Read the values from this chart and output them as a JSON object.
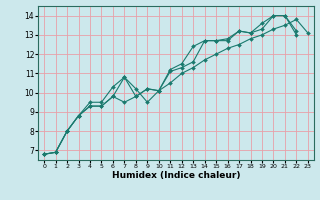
{
  "title": "",
  "xlabel": "Humidex (Indice chaleur)",
  "background_color": "#cce8ec",
  "grid_color": "#e8a0a8",
  "line_color": "#1a7a6e",
  "xlim": [
    -0.5,
    23.5
  ],
  "ylim": [
    6.5,
    14.5
  ],
  "xticks": [
    0,
    1,
    2,
    3,
    4,
    5,
    6,
    7,
    8,
    9,
    10,
    11,
    12,
    13,
    14,
    15,
    16,
    17,
    18,
    19,
    20,
    21,
    22,
    23
  ],
  "yticks": [
    7,
    8,
    9,
    10,
    11,
    12,
    13,
    14
  ],
  "line1_x": [
    0,
    1,
    2,
    3,
    4,
    5,
    6,
    7,
    8,
    9,
    10,
    11,
    12,
    13,
    14,
    15,
    16,
    17,
    18,
    19,
    20,
    21,
    22
  ],
  "line1_y": [
    6.8,
    6.9,
    8.0,
    8.8,
    9.5,
    9.5,
    10.3,
    10.8,
    9.8,
    10.2,
    10.1,
    11.2,
    11.5,
    12.4,
    12.7,
    12.7,
    12.8,
    13.2,
    13.1,
    13.6,
    14.0,
    14.0,
    13.0
  ],
  "line2_x": [
    0,
    1,
    2,
    3,
    4,
    5,
    6,
    7,
    8,
    9,
    10,
    11,
    12,
    13,
    14,
    15,
    16,
    17,
    18,
    19,
    20,
    21,
    22
  ],
  "line2_y": [
    6.8,
    6.9,
    8.0,
    8.8,
    9.3,
    9.3,
    9.8,
    10.8,
    10.2,
    9.5,
    10.1,
    11.1,
    11.3,
    11.6,
    12.7,
    12.7,
    12.7,
    13.2,
    13.1,
    13.3,
    14.0,
    14.0,
    13.2
  ],
  "line3_x": [
    0,
    1,
    2,
    3,
    4,
    5,
    6,
    7,
    8,
    9,
    10,
    11,
    12,
    13,
    14,
    15,
    16,
    17,
    18,
    19,
    20,
    21,
    22,
    23
  ],
  "line3_y": [
    6.8,
    6.9,
    8.0,
    8.8,
    9.3,
    9.3,
    9.8,
    9.5,
    9.8,
    10.2,
    10.1,
    10.5,
    11.0,
    11.3,
    11.7,
    12.0,
    12.3,
    12.5,
    12.8,
    13.0,
    13.3,
    13.5,
    13.8,
    13.1
  ]
}
